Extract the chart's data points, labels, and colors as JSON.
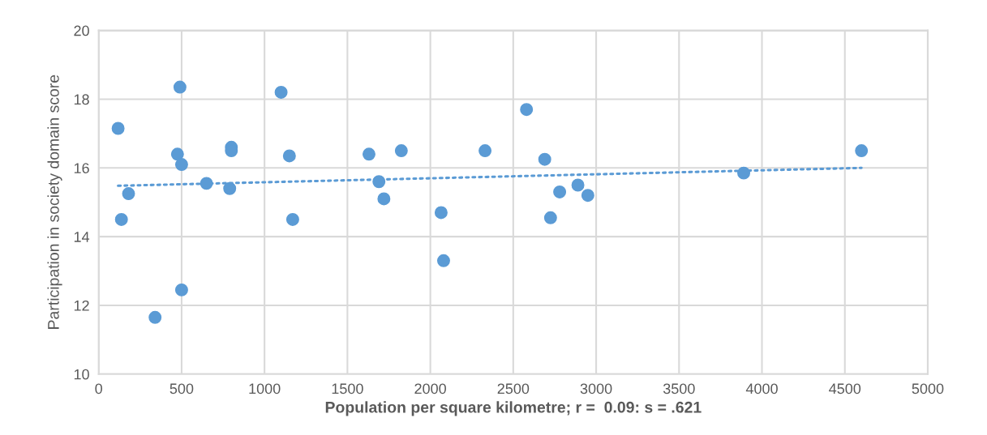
{
  "chart_data": {
    "type": "scatter",
    "xlabel": "Population per square kilometre; r =  0.09: s = .621",
    "ylabel": "Participation in society domain score",
    "xlim": [
      0,
      5000
    ],
    "xticks": [
      0,
      500,
      1000,
      1500,
      2000,
      2500,
      3000,
      3500,
      4000,
      4500,
      5000
    ],
    "ylim": [
      10,
      20
    ],
    "yticks": [
      10,
      12,
      14,
      16,
      18,
      20
    ],
    "grid": true,
    "series": [
      {
        "marker": "circle",
        "color": "#5b9bd5",
        "x": [
          117,
          137,
          180,
          340,
          475,
          490,
          500,
          500,
          650,
          790,
          800,
          800,
          1100,
          1150,
          1170,
          1630,
          1690,
          1720,
          1825,
          2065,
          2080,
          2330,
          2580,
          2690,
          2725,
          2780,
          2890,
          2950,
          3890,
          4600
        ],
        "values": [
          17.15,
          14.5,
          15.25,
          11.65,
          16.4,
          18.35,
          16.1,
          12.45,
          15.55,
          15.4,
          16.6,
          16.5,
          18.2,
          16.35,
          14.5,
          16.4,
          15.6,
          15.1,
          16.5,
          14.7,
          13.3,
          16.5,
          17.7,
          16.25,
          14.55,
          15.3,
          15.5,
          15.2,
          15.85,
          16.5
        ]
      },
      {
        "type": "line",
        "marker": "none",
        "color": "#5b9bd5",
        "line_style": "dotted",
        "x": [
          117,
          4600
        ],
        "values": [
          15.48,
          16.0
        ]
      }
    ]
  }
}
